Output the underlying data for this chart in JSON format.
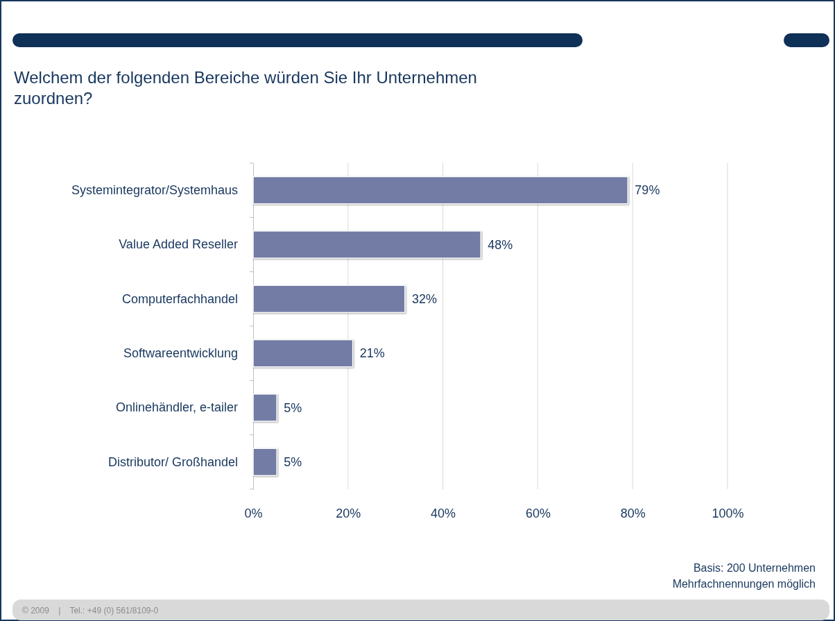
{
  "chart_data": {
    "type": "bar",
    "orientation": "horizontal",
    "title": "Welchem der folgenden Bereiche würden Sie Ihr Unternehmen zuordnen?",
    "categories": [
      "Systemintegrator/Systemhaus",
      "Value Added Reseller",
      "Computerfachhandel",
      "Softwareentwicklung",
      "Onlinehändler, e-tailer",
      "Distributor/ Großhandel"
    ],
    "values": [
      79,
      48,
      32,
      21,
      5,
      5
    ],
    "value_labels": [
      "79%",
      "48%",
      "32%",
      "21%",
      "5%",
      "5%"
    ],
    "color": "#727ca4",
    "xlim": [
      0,
      100
    ],
    "xticks": [
      {
        "value": 0,
        "label": "0%"
      },
      {
        "value": 20,
        "label": "20%"
      },
      {
        "value": 40,
        "label": "40%"
      },
      {
        "value": 60,
        "label": "60%"
      },
      {
        "value": 80,
        "label": "80%"
      },
      {
        "value": 100,
        "label": "100%"
      }
    ],
    "grid": "x",
    "annotations": [
      "Basis: 200 Unternehmen",
      "Mehrfachnennungen möglich",
      "© 2009    |    Tel.: +49 (0) 561/8109-0"
    ]
  }
}
